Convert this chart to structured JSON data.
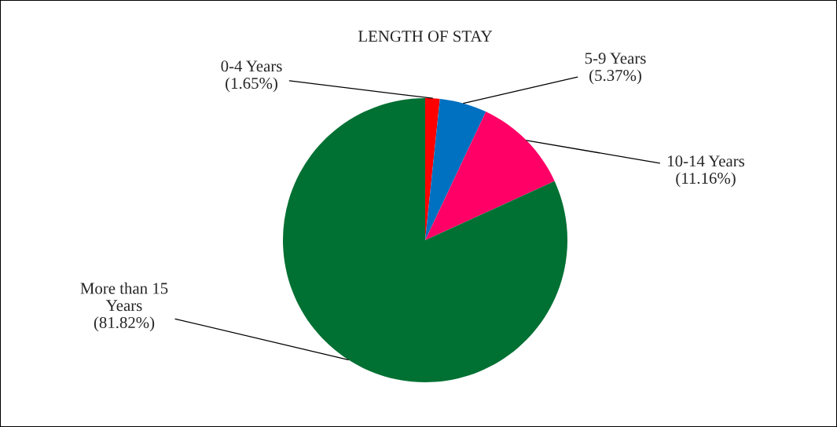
{
  "chart_data": {
    "type": "pie",
    "title": "LENGTH OF STAY",
    "categories": [
      "0-4 Years",
      "5-9 Years",
      "10-14 Years",
      "More than 15 Years"
    ],
    "values": [
      1.65,
      5.37,
      11.16,
      81.82
    ],
    "colors": [
      "#ff0000",
      "#0070c0",
      "#ff0066",
      "#007033"
    ],
    "value_labels": [
      "(1.65%)",
      "(5.37%)",
      "(11.16%)",
      "(81.82%)"
    ],
    "legend": false
  }
}
